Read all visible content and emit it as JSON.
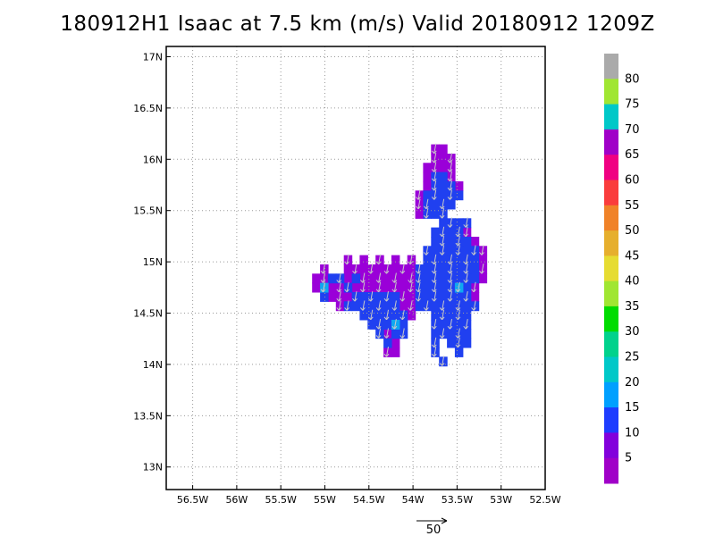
{
  "chart_data": {
    "type": "heatmap",
    "title": "180912H1 Isaac at 7.5 km (m/s) Valid 20180912  1209Z",
    "x_ticks": [
      {
        "value": -56.5,
        "label": "56.5W"
      },
      {
        "value": -56.0,
        "label": "56W"
      },
      {
        "value": -55.5,
        "label": "55.5W"
      },
      {
        "value": -55.0,
        "label": "55W"
      },
      {
        "value": -54.5,
        "label": "54.5W"
      },
      {
        "value": -54.0,
        "label": "54W"
      },
      {
        "value": -53.5,
        "label": "53.5W"
      },
      {
        "value": -53.0,
        "label": "53W"
      },
      {
        "value": -52.5,
        "label": "52.5W"
      }
    ],
    "y_ticks": [
      {
        "value": 13.0,
        "label": "13N"
      },
      {
        "value": 13.5,
        "label": "13.5N"
      },
      {
        "value": 14.0,
        "label": "14N"
      },
      {
        "value": 14.5,
        "label": "14.5N"
      },
      {
        "value": 15.0,
        "label": "15N"
      },
      {
        "value": 15.5,
        "label": "15.5N"
      },
      {
        "value": 16.0,
        "label": "16N"
      },
      {
        "value": 16.5,
        "label": "16.5N"
      },
      {
        "value": 17.0,
        "label": "17N"
      }
    ],
    "xlim": [
      -56.8,
      -52.5
    ],
    "ylim": [
      12.78,
      17.1
    ],
    "grid": true,
    "cell_size_deg": 0.09,
    "colorbar": {
      "placement": "right",
      "colors": [
        "#a000c8",
        "#8200dc",
        "#1e3cff",
        "#00a0ff",
        "#00c8c8",
        "#00d28c",
        "#00dc00",
        "#a0e632",
        "#e6dc32",
        "#e6af2d",
        "#f08228",
        "#fa3c3c",
        "#f00082",
        "#a000c8",
        "#00c8c8",
        "#a0e632",
        "#aaaaaa"
      ],
      "labels": [
        "5",
        "10",
        "15",
        "20",
        "25",
        "30",
        "35",
        "40",
        "45",
        "50",
        "55",
        "60",
        "65",
        "70",
        "75",
        "80"
      ]
    },
    "regions": [
      {
        "name": "purple",
        "value_class": "5-10",
        "color": "#9a00d8",
        "cells": [
          [
            -53.75,
            16.1
          ],
          [
            -53.66,
            16.1
          ],
          [
            -53.75,
            16.01
          ],
          [
            -53.66,
            16.01
          ],
          [
            -53.57,
            16.01
          ],
          [
            -53.84,
            15.92
          ],
          [
            -53.75,
            15.92
          ],
          [
            -53.66,
            15.92
          ],
          [
            -53.57,
            15.92
          ],
          [
            -53.84,
            15.83
          ],
          [
            -53.57,
            15.83
          ],
          [
            -53.84,
            15.74
          ],
          [
            -53.93,
            15.65
          ],
          [
            -53.48,
            15.74
          ],
          [
            -53.93,
            15.56
          ],
          [
            -53.93,
            15.47
          ],
          [
            -53.39,
            15.29
          ],
          [
            -53.3,
            15.2
          ],
          [
            -53.21,
            15.11
          ],
          [
            -53.21,
            15.02
          ],
          [
            -53.21,
            14.93
          ],
          [
            -53.21,
            14.84
          ],
          [
            -53.3,
            14.75
          ],
          [
            -53.3,
            14.66
          ],
          [
            -55.01,
            14.93
          ],
          [
            -55.1,
            14.84
          ],
          [
            -55.01,
            14.84
          ],
          [
            -55.1,
            14.75
          ],
          [
            -55.01,
            14.75
          ],
          [
            -54.92,
            14.75
          ],
          [
            -54.83,
            14.75
          ],
          [
            -54.74,
            14.93
          ],
          [
            -54.65,
            14.93
          ],
          [
            -54.56,
            14.93
          ],
          [
            -54.47,
            14.93
          ],
          [
            -54.38,
            14.93
          ],
          [
            -54.29,
            14.93
          ],
          [
            -54.2,
            14.93
          ],
          [
            -54.11,
            14.93
          ],
          [
            -54.02,
            14.93
          ],
          [
            -54.74,
            15.02
          ],
          [
            -54.56,
            15.02
          ],
          [
            -54.38,
            15.02
          ],
          [
            -54.2,
            15.02
          ],
          [
            -54.02,
            15.02
          ],
          [
            -54.74,
            14.84
          ],
          [
            -54.56,
            14.84
          ],
          [
            -54.47,
            14.84
          ],
          [
            -54.38,
            14.84
          ],
          [
            -54.29,
            14.84
          ],
          [
            -54.2,
            14.84
          ],
          [
            -54.11,
            14.84
          ],
          [
            -54.02,
            14.84
          ],
          [
            -54.65,
            14.75
          ],
          [
            -54.56,
            14.75
          ],
          [
            -54.47,
            14.75
          ],
          [
            -54.38,
            14.75
          ],
          [
            -54.29,
            14.75
          ],
          [
            -54.2,
            14.75
          ],
          [
            -54.11,
            14.75
          ],
          [
            -54.02,
            14.75
          ],
          [
            -54.92,
            14.66
          ],
          [
            -54.83,
            14.66
          ],
          [
            -54.74,
            14.66
          ],
          [
            -54.11,
            14.66
          ],
          [
            -54.02,
            14.66
          ],
          [
            -54.83,
            14.57
          ],
          [
            -54.11,
            14.57
          ],
          [
            -54.02,
            14.57
          ],
          [
            -54.02,
            14.48
          ],
          [
            -54.29,
            14.3
          ],
          [
            -54.2,
            14.21
          ],
          [
            -54.29,
            14.12
          ],
          [
            -54.2,
            14.12
          ]
        ]
      },
      {
        "name": "blue",
        "value_class": "10-15",
        "color": "#2040f0",
        "cells": [
          [
            -53.75,
            15.83
          ],
          [
            -53.66,
            15.83
          ],
          [
            -53.75,
            15.74
          ],
          [
            -53.66,
            15.74
          ],
          [
            -53.57,
            15.74
          ],
          [
            -53.84,
            15.65
          ],
          [
            -53.75,
            15.65
          ],
          [
            -53.66,
            15.65
          ],
          [
            -53.57,
            15.65
          ],
          [
            -53.48,
            15.65
          ],
          [
            -53.84,
            15.56
          ],
          [
            -53.75,
            15.56
          ],
          [
            -53.66,
            15.56
          ],
          [
            -53.57,
            15.56
          ],
          [
            -53.84,
            15.47
          ],
          [
            -53.75,
            15.47
          ],
          [
            -53.66,
            15.47
          ],
          [
            -53.66,
            15.38
          ],
          [
            -53.57,
            15.38
          ],
          [
            -53.48,
            15.38
          ],
          [
            -53.39,
            15.38
          ],
          [
            -53.75,
            15.29
          ],
          [
            -53.66,
            15.29
          ],
          [
            -53.57,
            15.29
          ],
          [
            -53.48,
            15.29
          ],
          [
            -53.75,
            15.2
          ],
          [
            -53.66,
            15.2
          ],
          [
            -53.57,
            15.2
          ],
          [
            -53.48,
            15.2
          ],
          [
            -53.39,
            15.2
          ],
          [
            -53.84,
            15.11
          ],
          [
            -53.75,
            15.11
          ],
          [
            -53.66,
            15.11
          ],
          [
            -53.57,
            15.11
          ],
          [
            -53.48,
            15.11
          ],
          [
            -53.39,
            15.11
          ],
          [
            -53.3,
            15.11
          ],
          [
            -53.84,
            15.02
          ],
          [
            -53.75,
            15.02
          ],
          [
            -53.66,
            15.02
          ],
          [
            -53.57,
            15.02
          ],
          [
            -53.48,
            15.02
          ],
          [
            -53.39,
            15.02
          ],
          [
            -53.3,
            15.02
          ],
          [
            -53.93,
            14.93
          ],
          [
            -53.84,
            14.93
          ],
          [
            -53.75,
            14.93
          ],
          [
            -53.66,
            14.93
          ],
          [
            -53.57,
            14.93
          ],
          [
            -53.48,
            14.93
          ],
          [
            -53.39,
            14.93
          ],
          [
            -53.3,
            14.93
          ],
          [
            -53.93,
            14.84
          ],
          [
            -53.84,
            14.84
          ],
          [
            -53.75,
            14.84
          ],
          [
            -53.66,
            14.84
          ],
          [
            -53.57,
            14.84
          ],
          [
            -53.48,
            14.84
          ],
          [
            -53.39,
            14.84
          ],
          [
            -53.3,
            14.84
          ],
          [
            -53.93,
            14.75
          ],
          [
            -53.84,
            14.75
          ],
          [
            -53.75,
            14.75
          ],
          [
            -53.66,
            14.75
          ],
          [
            -53.57,
            14.75
          ],
          [
            -53.39,
            14.75
          ],
          [
            -53.93,
            14.66
          ],
          [
            -53.84,
            14.66
          ],
          [
            -53.75,
            14.66
          ],
          [
            -53.66,
            14.66
          ],
          [
            -53.57,
            14.66
          ],
          [
            -53.48,
            14.66
          ],
          [
            -53.39,
            14.66
          ],
          [
            -53.93,
            14.57
          ],
          [
            -53.84,
            14.57
          ],
          [
            -53.75,
            14.57
          ],
          [
            -53.66,
            14.57
          ],
          [
            -53.57,
            14.57
          ],
          [
            -53.48,
            14.57
          ],
          [
            -53.39,
            14.57
          ],
          [
            -53.3,
            14.57
          ],
          [
            -53.75,
            14.48
          ],
          [
            -53.66,
            14.48
          ],
          [
            -53.57,
            14.48
          ],
          [
            -53.48,
            14.48
          ],
          [
            -53.39,
            14.48
          ],
          [
            -53.75,
            14.39
          ],
          [
            -53.66,
            14.39
          ],
          [
            -53.57,
            14.39
          ],
          [
            -53.48,
            14.39
          ],
          [
            -53.39,
            14.39
          ],
          [
            -53.75,
            14.3
          ],
          [
            -53.66,
            14.3
          ],
          [
            -53.57,
            14.3
          ],
          [
            -53.48,
            14.3
          ],
          [
            -53.39,
            14.3
          ],
          [
            -53.75,
            14.21
          ],
          [
            -53.57,
            14.21
          ],
          [
            -53.48,
            14.21
          ],
          [
            -53.39,
            14.21
          ],
          [
            -53.75,
            14.12
          ],
          [
            -53.48,
            14.12
          ],
          [
            -53.66,
            14.03
          ],
          [
            -54.92,
            14.84
          ],
          [
            -54.83,
            14.84
          ],
          [
            -55.01,
            14.66
          ],
          [
            -54.74,
            14.75
          ],
          [
            -54.65,
            14.84
          ],
          [
            -54.65,
            14.66
          ],
          [
            -54.56,
            14.66
          ],
          [
            -54.47,
            14.66
          ],
          [
            -54.38,
            14.66
          ],
          [
            -54.29,
            14.66
          ],
          [
            -54.2,
            14.66
          ],
          [
            -54.74,
            14.57
          ],
          [
            -54.65,
            14.57
          ],
          [
            -54.56,
            14.57
          ],
          [
            -54.47,
            14.57
          ],
          [
            -54.38,
            14.57
          ],
          [
            -54.29,
            14.57
          ],
          [
            -54.2,
            14.57
          ],
          [
            -54.56,
            14.48
          ],
          [
            -54.47,
            14.48
          ],
          [
            -54.38,
            14.48
          ],
          [
            -54.29,
            14.48
          ],
          [
            -54.2,
            14.48
          ],
          [
            -54.11,
            14.48
          ],
          [
            -54.47,
            14.39
          ],
          [
            -54.38,
            14.39
          ],
          [
            -54.29,
            14.39
          ],
          [
            -54.2,
            14.39
          ],
          [
            -54.11,
            14.39
          ],
          [
            -54.38,
            14.3
          ],
          [
            -54.2,
            14.3
          ],
          [
            -54.11,
            14.3
          ],
          [
            -54.29,
            14.21
          ]
        ]
      },
      {
        "name": "cyan",
        "value_class": "15-20",
        "color": "#10a8f0",
        "cells": [
          [
            -53.48,
            14.75
          ],
          [
            -54.2,
            14.39
          ],
          [
            -55.01,
            14.75
          ]
        ]
      }
    ],
    "wind_vector_reference": {
      "value": 50,
      "label": "50"
    }
  }
}
